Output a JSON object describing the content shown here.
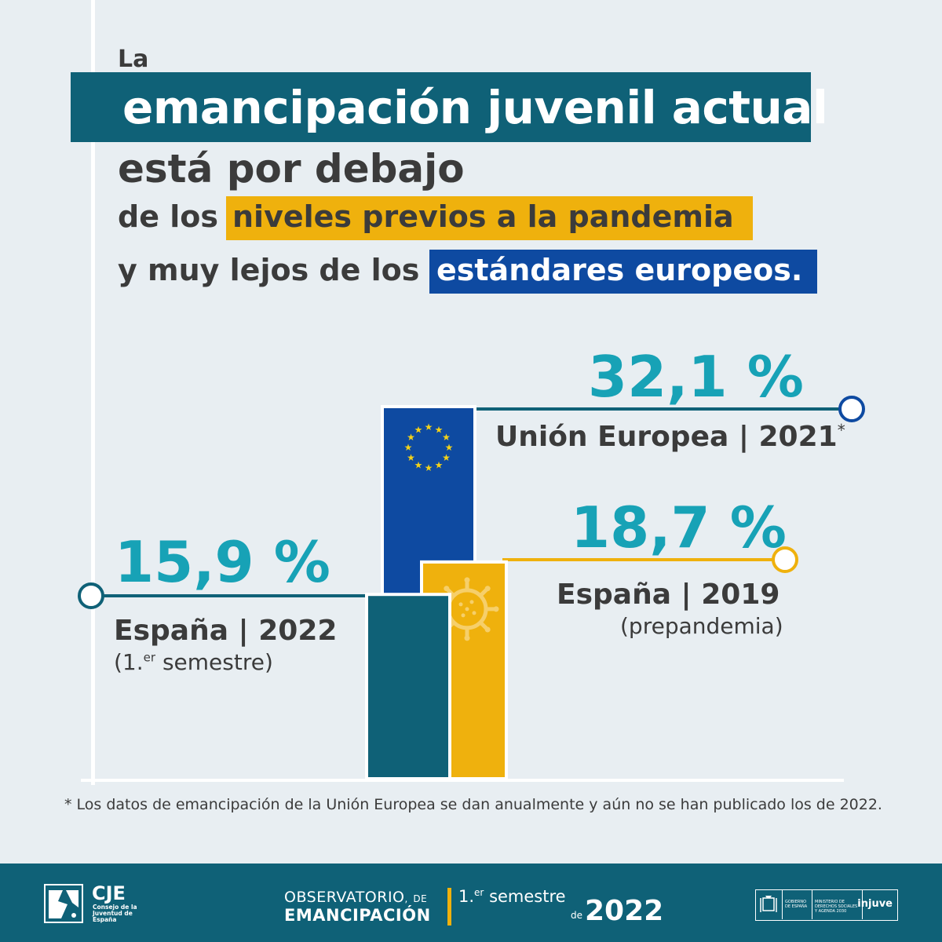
{
  "header": {
    "line1": "La",
    "line2_highlight": "emancipación juvenil actual",
    "line3": "está por debajo",
    "line4_prefix": "de los",
    "line4_highlight": "niveles previos a la pandemia",
    "line5_prefix": "y muy lejos de los",
    "line5_highlight": "estándares europeos."
  },
  "colors": {
    "background": "#e8eef2",
    "teal": "#0f6177",
    "eu_blue": "#0e4aa1",
    "yellow": "#efb10d",
    "value_cyan": "#17a2b6",
    "text_dark": "#3b3b3b"
  },
  "chart_data": {
    "type": "bar",
    "categories": [
      "España | 2022",
      "Unión Europea | 2021*",
      "España | 2019"
    ],
    "values": [
      15.9,
      32.1,
      18.7
    ],
    "unit": "%",
    "ylim": [
      0,
      32.1
    ],
    "bars": [
      {
        "key": "es2022",
        "value": 15.9,
        "value_label": "15,9 %",
        "label": "España | 2022",
        "sublabel_main": "(1.",
        "sublabel_sup": "er",
        "sublabel_end": " semestre)",
        "color": "#0f6177",
        "icon": ""
      },
      {
        "key": "eu2021",
        "value": 32.1,
        "value_label": "32,1 %",
        "label": "Unión Europea | 2021",
        "label_mark": "*",
        "color": "#0e4aa1",
        "icon": "eu-stars-icon"
      },
      {
        "key": "es2019",
        "value": 18.7,
        "value_label": "18,7 %",
        "label": "España | 2019",
        "sublabel": "(prepandemia)",
        "color": "#efb10d",
        "icon": "virus-icon"
      }
    ]
  },
  "footnote": "*  Los datos de emancipación de la Unión Europea se dan anualmente y aún no se han publicado los de 2022.",
  "footer": {
    "org_name": "CJE",
    "org_full": "Consejo de la Juventud de España",
    "observatory_line1": "OBSERVATORIO",
    "observatory_de": "DE",
    "observatory_line2": "EMANCIPACIÓN",
    "semester_num": "1.",
    "semester_sup": "er",
    "semester_word": "semestre",
    "de": "de",
    "year": "2022",
    "gov_label": "GOBIERNO DE ESPAÑA",
    "ministry_label": "MINISTERIO DE DERECHOS SOCIALES Y AGENDA 2030",
    "injuve": "injuve"
  }
}
